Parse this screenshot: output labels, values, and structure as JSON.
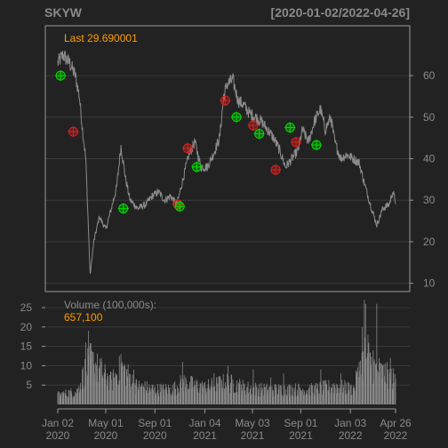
{
  "header": {
    "symbol": "SKYW",
    "date_range": "[2020-01-02/2022-04-26]"
  },
  "price_panel": {
    "last_label": "Last 29.690001"
  },
  "volume_panel": {
    "label": "Volume (100,000s):",
    "last_value": "657,100"
  },
  "colors": {
    "background": "#222222",
    "panel_border": "#9a9a9a",
    "grid": "#3a3a3a",
    "axis_text": "#8a8a8a",
    "price_line": "#8c8c8c",
    "volume_bar": "#8a8a8a",
    "accent": "#ff9d00",
    "buy_marker": "#00dd00",
    "sell_marker": "#dd2020"
  },
  "chart_data": [
    {
      "type": "line",
      "title": "SKYW",
      "ylim": [
        8,
        72
      ],
      "y_ticks": [
        10,
        20,
        30,
        40,
        50,
        60
      ],
      "x_ticks": [
        {
          "date": "2020-01-02",
          "label": [
            "Jan 02",
            "2020"
          ]
        },
        {
          "date": "2020-05-01",
          "label": [
            "May 01",
            "2020"
          ]
        },
        {
          "date": "2020-09-01",
          "label": [
            "Sep 01",
            "2020"
          ]
        },
        {
          "date": "2021-01-04",
          "label": [
            "Jan 04",
            "2021"
          ]
        },
        {
          "date": "2021-05-03",
          "label": [
            "May 03",
            "2021"
          ]
        },
        {
          "date": "2021-09-01",
          "label": [
            "Sep 01",
            "2021"
          ]
        },
        {
          "date": "2022-01-03",
          "label": [
            "Jan 03",
            "2022"
          ]
        },
        {
          "date": "2022-04-26",
          "label": [
            "Apr 26",
            "2022"
          ]
        }
      ],
      "x_range": [
        "2020-01-02",
        "2022-04-26"
      ],
      "series": [
        {
          "points": [
            [
              "2020-01-02",
              63
            ],
            [
              "2020-01-15",
              65
            ],
            [
              "2020-02-01",
              63
            ],
            [
              "2020-02-15",
              60
            ],
            [
              "2020-02-25",
              55
            ],
            [
              "2020-03-05",
              46
            ],
            [
              "2020-03-12",
              40
            ],
            [
              "2020-03-18",
              25
            ],
            [
              "2020-03-23",
              12
            ],
            [
              "2020-04-01",
              20
            ],
            [
              "2020-04-15",
              26
            ],
            [
              "2020-05-01",
              23
            ],
            [
              "2020-05-15",
              28
            ],
            [
              "2020-05-28",
              33
            ],
            [
              "2020-06-08",
              43
            ],
            [
              "2020-06-20",
              35
            ],
            [
              "2020-07-01",
              30
            ],
            [
              "2020-07-20",
              28
            ],
            [
              "2020-08-10",
              29
            ],
            [
              "2020-08-25",
              31
            ],
            [
              "2020-09-10",
              32
            ],
            [
              "2020-09-25",
              30
            ],
            [
              "2020-10-10",
              31
            ],
            [
              "2020-10-26",
              29
            ],
            [
              "2020-11-10",
              35
            ],
            [
              "2020-11-25",
              41
            ],
            [
              "2020-12-10",
              44
            ],
            [
              "2020-12-25",
              38
            ],
            [
              "2021-01-10",
              38
            ],
            [
              "2021-01-25",
              41
            ],
            [
              "2021-02-10",
              45
            ],
            [
              "2021-02-20",
              55
            ],
            [
              "2021-03-01",
              58
            ],
            [
              "2021-03-15",
              59
            ],
            [
              "2021-03-28",
              54
            ],
            [
              "2021-04-10",
              53
            ],
            [
              "2021-04-25",
              51
            ],
            [
              "2021-05-10",
              50
            ],
            [
              "2021-05-25",
              49
            ],
            [
              "2021-06-10",
              47
            ],
            [
              "2021-06-25",
              45
            ],
            [
              "2021-07-10",
              42
            ],
            [
              "2021-07-25",
              38
            ],
            [
              "2021-08-10",
              40
            ],
            [
              "2021-08-25",
              42
            ],
            [
              "2021-09-05",
              47
            ],
            [
              "2021-09-20",
              44
            ],
            [
              "2021-10-05",
              49
            ],
            [
              "2021-10-20",
              52
            ],
            [
              "2021-11-01",
              47
            ],
            [
              "2021-11-15",
              50
            ],
            [
              "2021-11-25",
              44
            ],
            [
              "2021-12-10",
              40
            ],
            [
              "2021-12-25",
              41
            ],
            [
              "2022-01-10",
              40
            ],
            [
              "2022-01-25",
              39
            ],
            [
              "2022-02-10",
              33
            ],
            [
              "2022-02-25",
              28
            ],
            [
              "2022-03-10",
              24
            ],
            [
              "2022-03-25",
              28
            ],
            [
              "2022-04-10",
              29
            ],
            [
              "2022-04-19",
              32
            ],
            [
              "2022-04-26",
              29.69
            ]
          ]
        }
      ],
      "buy_markers": [
        [
          "2020-01-09",
          60
        ],
        [
          "2020-06-14",
          28
        ],
        [
          "2020-11-02",
          28.5
        ],
        [
          "2020-12-15",
          38
        ],
        [
          "2021-03-24",
          50
        ],
        [
          "2021-05-20",
          46
        ],
        [
          "2021-08-05",
          47.5
        ],
        [
          "2021-10-10",
          43.3
        ]
      ],
      "sell_markers": [
        [
          "2020-02-10",
          46.5
        ],
        [
          "2020-10-28",
          29
        ],
        [
          "2020-11-22",
          42.5
        ],
        [
          "2021-02-24",
          54
        ],
        [
          "2021-05-05",
          48
        ],
        [
          "2021-06-30",
          37.3
        ],
        [
          "2021-08-20",
          44
        ]
      ]
    },
    {
      "type": "bar",
      "title": "Volume (100,000s)",
      "ylim": [
        0,
        28
      ],
      "y_ticks": [
        5,
        10,
        15,
        20,
        25
      ],
      "x_range": [
        "2020-01-02",
        "2022-04-26"
      ],
      "profile": [
        [
          "2020-01-02",
          2.5
        ],
        [
          "2020-02-20",
          3.5
        ],
        [
          "2020-03-10",
          9
        ],
        [
          "2020-03-25",
          12
        ],
        [
          "2020-04-15",
          9
        ],
        [
          "2020-05-15",
          6
        ],
        [
          "2020-06-10",
          10
        ],
        [
          "2020-06-25",
          8
        ],
        [
          "2020-07-15",
          5
        ],
        [
          "2020-09-01",
          4
        ],
        [
          "2020-10-15",
          4
        ],
        [
          "2020-11-10",
          6
        ],
        [
          "2021-01-01",
          4.5
        ],
        [
          "2021-03-01",
          6
        ],
        [
          "2021-04-15",
          4.5
        ],
        [
          "2021-06-01",
          4
        ],
        [
          "2021-08-01",
          4
        ],
        [
          "2021-10-01",
          4
        ],
        [
          "2021-12-01",
          5
        ],
        [
          "2022-01-10",
          4
        ],
        [
          "2022-02-10",
          14
        ],
        [
          "2022-03-01",
          10
        ],
        [
          "2022-04-26",
          6.571
        ]
      ],
      "spikes": [
        [
          "2020-03-12",
          16
        ],
        [
          "2020-03-19",
          19
        ],
        [
          "2020-03-26",
          14
        ],
        [
          "2020-04-20",
          12
        ],
        [
          "2020-05-05",
          8
        ],
        [
          "2020-06-08",
          13
        ],
        [
          "2020-06-12",
          10
        ],
        [
          "2020-07-10",
          9
        ],
        [
          "2020-11-09",
          11
        ],
        [
          "2021-01-27",
          8
        ],
        [
          "2021-03-03",
          10
        ],
        [
          "2021-05-05",
          9
        ],
        [
          "2021-06-18",
          7
        ],
        [
          "2021-07-20",
          8
        ],
        [
          "2021-10-21",
          9
        ],
        [
          "2021-12-10",
          8
        ],
        [
          "2022-01-25",
          11
        ],
        [
          "2022-02-02",
          20
        ],
        [
          "2022-02-07",
          27
        ],
        [
          "2022-02-10",
          26
        ],
        [
          "2022-02-16",
          18
        ],
        [
          "2022-03-01",
          14
        ],
        [
          "2022-03-10",
          26
        ],
        [
          "2022-03-25",
          10
        ],
        [
          "2022-04-13",
          12
        ],
        [
          "2022-04-26",
          6.571
        ]
      ]
    }
  ]
}
